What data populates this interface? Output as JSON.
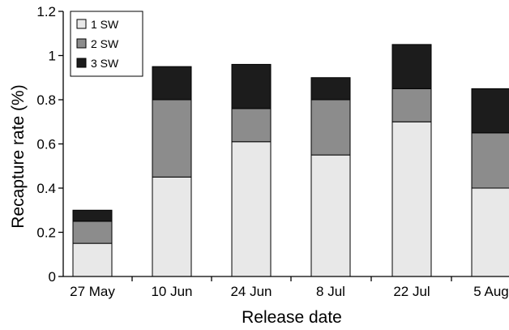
{
  "chart_data": {
    "type": "bar",
    "stacked": true,
    "categories": [
      "27 May",
      "10 Jun",
      "24 Jun",
      "8 Jul",
      "22 Jul",
      "5 Aug"
    ],
    "series": [
      {
        "name": "1 SW",
        "color": "#e8e8e8",
        "values": [
          0.15,
          0.45,
          0.61,
          0.55,
          0.7,
          0.4
        ]
      },
      {
        "name": "2 SW",
        "color": "#8c8c8c",
        "values": [
          0.1,
          0.35,
          0.15,
          0.25,
          0.15,
          0.25
        ]
      },
      {
        "name": "3 SW",
        "color": "#1c1c1c",
        "values": [
          0.05,
          0.15,
          0.2,
          0.1,
          0.2,
          0.2
        ]
      }
    ],
    "title": "",
    "xlabel": "Release date",
    "ylabel": "Recapture rate (%)",
    "ylim": [
      0,
      1.2
    ],
    "yticks": [
      "0",
      "0.2",
      "0.4",
      "0.6",
      "0.8",
      "1",
      "1.2"
    ],
    "grid": false,
    "legend_position": "top-left"
  }
}
